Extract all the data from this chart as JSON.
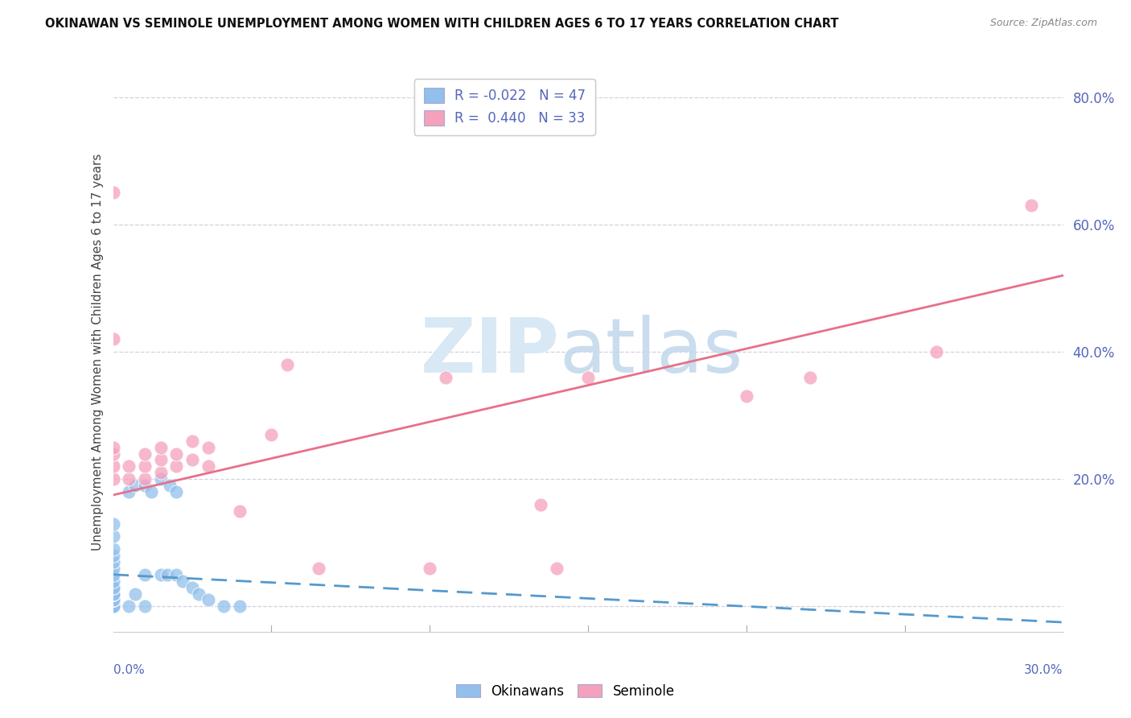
{
  "title": "OKINAWAN VS SEMINOLE UNEMPLOYMENT AMONG WOMEN WITH CHILDREN AGES 6 TO 17 YEARS CORRELATION CHART",
  "source": "Source: ZipAtlas.com",
  "ylabel": "Unemployment Among Women with Children Ages 6 to 17 years",
  "x_min": 0.0,
  "x_max": 0.3,
  "y_min": -0.04,
  "y_max": 0.84,
  "right_yticks": [
    0.0,
    0.2,
    0.4,
    0.6,
    0.8
  ],
  "right_ytick_labels": [
    "",
    "20.0%",
    "40.0%",
    "60.0%",
    "80.0%"
  ],
  "okinawan_color": "#92bfec",
  "seminole_color": "#f5a0bc",
  "okinawan_line_color": "#5599cc",
  "seminole_line_color": "#e8708a",
  "okinawan_R": -0.022,
  "okinawan_N": 47,
  "seminole_R": 0.44,
  "seminole_N": 33,
  "background_color": "#ffffff",
  "grid_color": "#ccccdd",
  "axis_color": "#5566bb",
  "label_color": "#444444",
  "title_color": "#111111",
  "source_color": "#888888",
  "ok_trend_intercept": 0.05,
  "ok_trend_slope": -0.25,
  "sem_trend_intercept": 0.175,
  "sem_trend_slope": 1.15,
  "okinawan_x": [
    0.0,
    0.0,
    0.0,
    0.0,
    0.0,
    0.0,
    0.0,
    0.0,
    0.0,
    0.0,
    0.0,
    0.0,
    0.0,
    0.0,
    0.0,
    0.0,
    0.0,
    0.0,
    0.0,
    0.0,
    0.0,
    0.0,
    0.0,
    0.0,
    0.0,
    0.0,
    0.0,
    0.005,
    0.005,
    0.007,
    0.007,
    0.01,
    0.01,
    0.01,
    0.012,
    0.015,
    0.015,
    0.017,
    0.018,
    0.02,
    0.02,
    0.022,
    0.025,
    0.027,
    0.03,
    0.035,
    0.04
  ],
  "okinawan_y": [
    0.0,
    0.0,
    0.0,
    0.0,
    0.0,
    0.0,
    0.0,
    0.0,
    0.01,
    0.01,
    0.01,
    0.01,
    0.01,
    0.02,
    0.02,
    0.02,
    0.02,
    0.03,
    0.03,
    0.04,
    0.05,
    0.06,
    0.07,
    0.08,
    0.09,
    0.11,
    0.13,
    0.0,
    0.18,
    0.02,
    0.19,
    0.0,
    0.05,
    0.19,
    0.18,
    0.05,
    0.2,
    0.05,
    0.19,
    0.05,
    0.18,
    0.04,
    0.03,
    0.02,
    0.01,
    0.0,
    0.0
  ],
  "seminole_x": [
    0.0,
    0.0,
    0.0,
    0.0,
    0.0,
    0.0,
    0.005,
    0.005,
    0.01,
    0.01,
    0.01,
    0.015,
    0.015,
    0.015,
    0.02,
    0.02,
    0.025,
    0.025,
    0.03,
    0.03,
    0.04,
    0.05,
    0.055,
    0.065,
    0.1,
    0.105,
    0.135,
    0.14,
    0.15,
    0.2,
    0.22,
    0.26,
    0.29
  ],
  "seminole_y": [
    0.2,
    0.22,
    0.24,
    0.42,
    0.65,
    0.25,
    0.2,
    0.22,
    0.2,
    0.22,
    0.24,
    0.21,
    0.23,
    0.25,
    0.22,
    0.24,
    0.23,
    0.26,
    0.22,
    0.25,
    0.15,
    0.27,
    0.38,
    0.06,
    0.06,
    0.36,
    0.16,
    0.06,
    0.36,
    0.33,
    0.36,
    0.4,
    0.63
  ]
}
